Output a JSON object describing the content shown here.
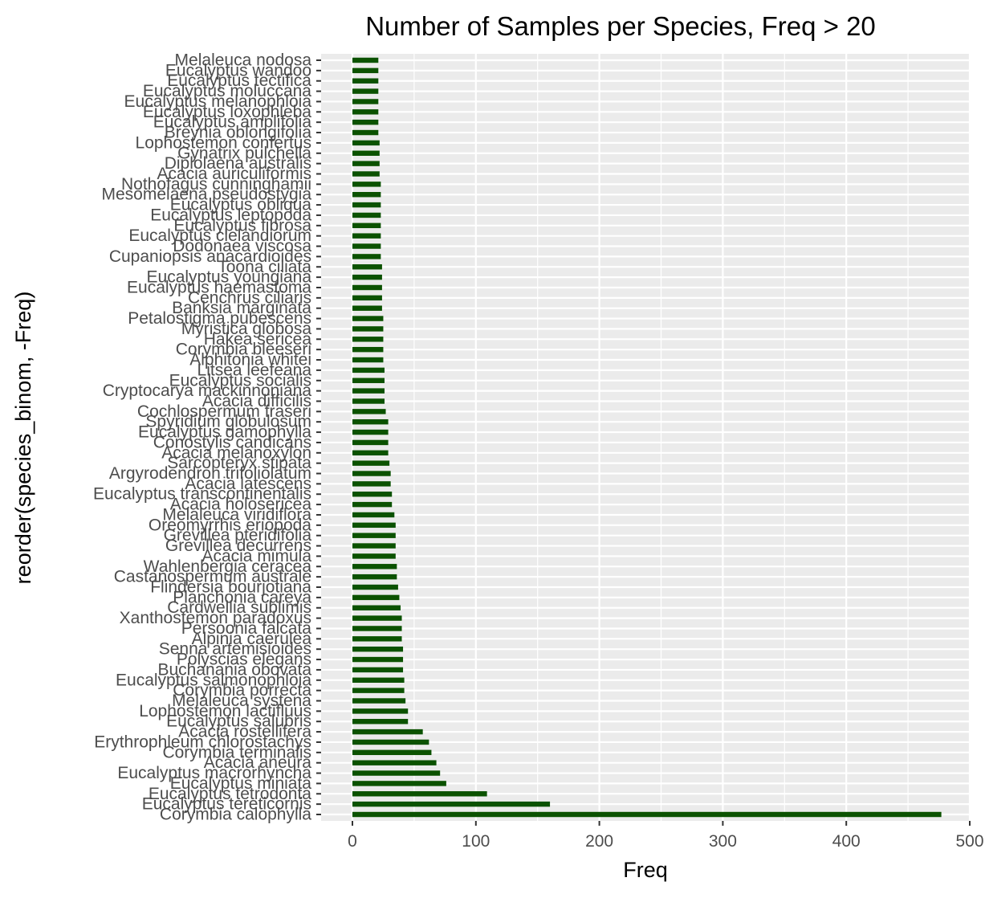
{
  "chart_data": {
    "type": "bar",
    "orientation": "horizontal",
    "title": "Number of Samples per Species, Freq > 20",
    "xlabel": "Freq",
    "ylabel": "reorder(species_binom, -Freq)",
    "xlim": [
      0,
      500
    ],
    "x_ticks": [
      0,
      100,
      200,
      300,
      400,
      500
    ],
    "grid": true,
    "legend": "none",
    "bar_color": "#0b5200",
    "panel_background": "#ebebeb",
    "gridline_color": "#ffffff",
    "categories": [
      "Melaleuca nodosa",
      "Eucalyptus wandoo",
      "Eucalyptus tectifica",
      "Eucalyptus moluccana",
      "Eucalyptus melanophloia",
      "Eucalyptus loxophleba",
      "Eucalyptus amplifolia",
      "Breynia oblongifolia",
      "Lophostemon confertus",
      "Gynatrix pulchella",
      "Diplolaena australis",
      "Acacia auriculiformis",
      "Nothofagus cunninghamii",
      "Mesomelaena pseudostygia",
      "Eucalyptus obliqua",
      "Eucalyptus leptopoda",
      "Eucalyptus fibrosa",
      "Eucalyptus clelandiorum",
      "Dodonaea viscosa",
      "Cupaniopsis anacardioides",
      "Toona ciliata",
      "Eucalyptus youngiana",
      "Eucalyptus haemastoma",
      "Cenchrus ciliaris",
      "Banksia marginata",
      "Petalostigma pubescens",
      "Myristica globosa",
      "Hakea sericea",
      "Corymbia bleeseri",
      "Alphitonia whitei",
      "Litsea leefeana",
      "Eucalyptus socialis",
      "Cryptocarya mackinnoniana",
      "Acacia difficilis",
      "Cochlospermum fraseri",
      "Spyridium globulosum",
      "Eucalyptus gamophylla",
      "Conostylis candicans",
      "Acacia melanoxylon",
      "Sarcopteryx stipata",
      "Argyrodendron trifoliolatum",
      "Acacia latescens",
      "Eucalyptus transcontinentalis",
      "Acacia holosericea",
      "Melaleuca viridiflora",
      "Oreomyrrhis eriopoda",
      "Grevillea pteridifolia",
      "Grevillea decurrens",
      "Acacia mimula",
      "Wahlenbergia ceracea",
      "Castanospermum australe",
      "Flindersia bourjotiana",
      "Planchonia careya",
      "Cardwellia sublimis",
      "Xanthostemon paradoxus",
      "Persoonia falcata",
      "Alpinia caerulea",
      "Senna artemisioides",
      "Polyscias elegans",
      "Buchanania obovata",
      "Eucalyptus salmonophloia",
      "Corymbia porrecta",
      "Melaleuca systena",
      "Lophostemon lactifluus",
      "Eucalyptus salubris",
      "Acacia rostellifera",
      "Erythrophleum chlorostachys",
      "Corymbia terminalis",
      "Acacia aneura",
      "Eucalyptus macrorhyncha",
      "Eucalyptus miniata",
      "Eucalyptus tetrodonta",
      "Eucalyptus tereticornis",
      "Corymbia calophylla"
    ],
    "values": [
      21,
      21,
      21,
      21,
      21,
      21,
      21,
      21,
      22,
      22,
      22,
      22,
      23,
      23,
      23,
      23,
      23,
      23,
      23,
      23,
      24,
      24,
      24,
      24,
      24,
      25,
      25,
      25,
      25,
      25,
      26,
      26,
      26,
      26,
      27,
      29,
      29,
      29,
      29,
      30,
      31,
      31,
      32,
      32,
      34,
      35,
      35,
      35,
      35,
      36,
      36,
      37,
      38,
      39,
      40,
      40,
      40,
      41,
      41,
      41,
      42,
      42,
      43,
      45,
      45,
      57,
      62,
      64,
      68,
      71,
      76,
      109,
      160,
      477
    ]
  }
}
